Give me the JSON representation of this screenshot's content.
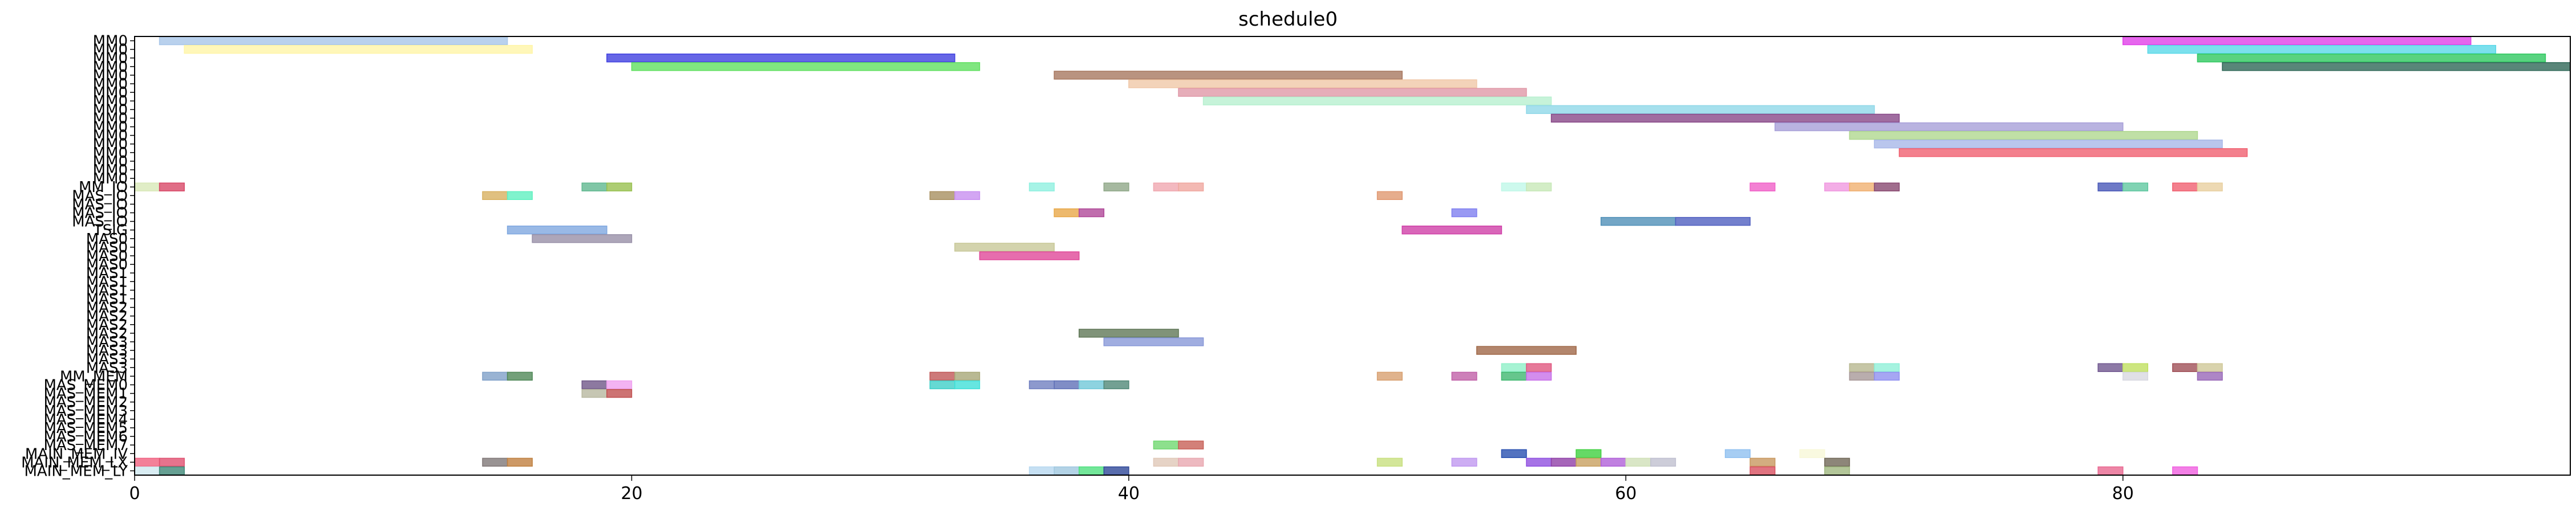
{
  "chart_data": {
    "type": "gantt",
    "title": "schedule0",
    "xlabel": "",
    "ylabel": "",
    "xlim": [
      0,
      98
    ],
    "xticks": [
      0,
      20,
      40,
      60,
      80
    ],
    "grid": false,
    "rows": [
      "MM0",
      "MM0",
      "MM0",
      "MM0",
      "MM0",
      "MM0",
      "MM0",
      "MM0",
      "MM0",
      "MM0",
      "MM0",
      "MM0",
      "MM0",
      "MM0",
      "MM0",
      "MM0",
      "MM0",
      "MM_IO",
      "MAS_IO",
      "MAS_IO",
      "MAS_IO",
      "MAS_IO",
      "TSIG",
      "MAS0",
      "MAS0",
      "MAS0",
      "MAS0",
      "MAS1",
      "MAS1",
      "MAS1",
      "MAS1",
      "MAS2",
      "MAS2",
      "MAS2",
      "MAS2",
      "MAS3",
      "MAS3",
      "MAS3",
      "MAS3",
      "MM_MEM",
      "MAS_MEM0",
      "MAS_MEM1",
      "MAS_MEM2",
      "MAS_MEM3",
      "MAS_MEM4",
      "MAS_MEM5",
      "MAS_MEM6",
      "MAS_MEM7",
      "MAIN_MEM_IV",
      "MAIN_MEM_LX",
      "MAIN_MEM_LY"
    ],
    "ytick_labels": [
      "MM0",
      "MM0",
      "MM0",
      "MM0",
      "MM0",
      "MM0",
      "MM0",
      "MM0",
      "MM0",
      "MM0",
      "MM0",
      "MM0",
      "MM0",
      "MM0",
      "MM0",
      "MM0",
      "MM0",
      "MM_IO",
      "MAS_IO",
      "MAS_IO",
      "MAS_IO",
      "MAS_IO",
      "TSIG",
      "MAS0",
      "MAS0",
      "MAS0",
      "MAS0",
      "MAS1",
      "MAS1",
      "MAS1",
      "MAS1",
      "MAS2",
      "MAS2",
      "MAS2",
      "MAS2",
      "MAS3",
      "MAS3",
      "MAS3",
      "MAS3",
      "MM_MEM",
      "MAS_MEM0",
      "MAS_MEM1",
      "MAS_MEM2",
      "MAS_MEM3",
      "MAS_MEM4",
      "MAS_MEM5",
      "MAS_MEM6",
      "MAS_MEM7",
      "MAIN_MEM_IV",
      "MAIN_MEM_LX",
      "MAIN_MEM_LY"
    ],
    "tasks": [
      {
        "row": 0,
        "start": 1,
        "end": 15,
        "color": "#a8c6e8"
      },
      {
        "row": 0,
        "start": 80,
        "end": 94,
        "color": "#e040e8"
      },
      {
        "row": 1,
        "start": 2,
        "end": 16,
        "color": "#fff5a8"
      },
      {
        "row": 1,
        "start": 81,
        "end": 95,
        "color": "#5ad8e8"
      },
      {
        "row": 2,
        "start": 19,
        "end": 33,
        "color": "#4040e0"
      },
      {
        "row": 2,
        "start": 83,
        "end": 97,
        "color": "#30c860"
      },
      {
        "row": 3,
        "start": 20,
        "end": 34,
        "color": "#60e060"
      },
      {
        "row": 3,
        "start": 84,
        "end": 98,
        "color": "#306858"
      },
      {
        "row": 4,
        "start": 37,
        "end": 51,
        "color": "#a87860"
      },
      {
        "row": 5,
        "start": 40,
        "end": 54,
        "color": "#f0c8a8"
      },
      {
        "row": 6,
        "start": 42,
        "end": 56,
        "color": "#e098a8"
      },
      {
        "row": 7,
        "start": 43,
        "end": 57,
        "color": "#b8f0d0"
      },
      {
        "row": 8,
        "start": 56,
        "end": 70,
        "color": "#90d8e8"
      },
      {
        "row": 9,
        "start": 57,
        "end": 71,
        "color": "#884888"
      },
      {
        "row": 10,
        "start": 66,
        "end": 80,
        "color": "#a8a0d8"
      },
      {
        "row": 11,
        "start": 69,
        "end": 83,
        "color": "#b0d890"
      },
      {
        "row": 12,
        "start": 70,
        "end": 84,
        "color": "#a8b8e8"
      },
      {
        "row": 13,
        "start": 71,
        "end": 85,
        "color": "#f06070"
      },
      {
        "row": 17,
        "start": 0,
        "end": 1,
        "color": "#d8e8b8"
      },
      {
        "row": 17,
        "start": 1,
        "end": 2,
        "color": "#d84868"
      },
      {
        "row": 18,
        "start": 14,
        "end": 15,
        "color": "#d8b060"
      },
      {
        "row": 18,
        "start": 15,
        "end": 16,
        "color": "#60f0c0"
      },
      {
        "row": 17,
        "start": 18,
        "end": 19,
        "color": "#60b890"
      },
      {
        "row": 17,
        "start": 19,
        "end": 20,
        "color": "#98c050"
      },
      {
        "row": 18,
        "start": 32,
        "end": 33,
        "color": "#a89060"
      },
      {
        "row": 18,
        "start": 33,
        "end": 34,
        "color": "#c890f0"
      },
      {
        "row": 17,
        "start": 36,
        "end": 37,
        "color": "#90f0e0"
      },
      {
        "row": 17,
        "start": 39,
        "end": 40,
        "color": "#90a888"
      },
      {
        "row": 17,
        "start": 41,
        "end": 42,
        "color": "#f0a8b0"
      },
      {
        "row": 17,
        "start": 42,
        "end": 43,
        "color": "#f0a8a0"
      },
      {
        "row": 18,
        "start": 50,
        "end": 51,
        "color": "#e09870"
      },
      {
        "row": 17,
        "start": 55,
        "end": 56,
        "color": "#c0f8e8"
      },
      {
        "row": 17,
        "start": 56,
        "end": 57,
        "color": "#c8e8b8"
      },
      {
        "row": 17,
        "start": 65,
        "end": 66,
        "color": "#f060c8"
      },
      {
        "row": 17,
        "start": 68,
        "end": 69,
        "color": "#f098e0"
      },
      {
        "row": 17,
        "start": 69,
        "end": 70,
        "color": "#f0b070"
      },
      {
        "row": 17,
        "start": 70,
        "end": 71,
        "color": "#884870"
      },
      {
        "row": 17,
        "start": 79,
        "end": 80,
        "color": "#4858b8"
      },
      {
        "row": 17,
        "start": 80,
        "end": 81,
        "color": "#60c8a0"
      },
      {
        "row": 17,
        "start": 82,
        "end": 83,
        "color": "#f06070"
      },
      {
        "row": 17,
        "start": 83,
        "end": 84,
        "color": "#e8d0a0"
      },
      {
        "row": 20,
        "start": 37,
        "end": 38,
        "color": "#e8a848"
      },
      {
        "row": 20,
        "start": 38,
        "end": 39,
        "color": "#b04898"
      },
      {
        "row": 20,
        "start": 53,
        "end": 54,
        "color": "#8080f0"
      },
      {
        "row": 21,
        "start": 59,
        "end": 62,
        "color": "#5090b8"
      },
      {
        "row": 21,
        "start": 62,
        "end": 65,
        "color": "#5060c0"
      },
      {
        "row": 22,
        "start": 15,
        "end": 19,
        "color": "#80a8e0"
      },
      {
        "row": 23,
        "start": 16,
        "end": 20,
        "color": "#9890a8"
      },
      {
        "row": 22,
        "start": 51,
        "end": 55,
        "color": "#d040a8"
      },
      {
        "row": 24,
        "start": 33,
        "end": 37,
        "color": "#c8c898"
      },
      {
        "row": 25,
        "start": 34,
        "end": 38,
        "color": "#e04898"
      },
      {
        "row": 34,
        "start": 38,
        "end": 42,
        "color": "#607858"
      },
      {
        "row": 35,
        "start": 39,
        "end": 43,
        "color": "#8898d8"
      },
      {
        "row": 36,
        "start": 54,
        "end": 58,
        "color": "#a06848"
      },
      {
        "row": 38,
        "start": 55,
        "end": 56,
        "color": "#90f0c8"
      },
      {
        "row": 38,
        "start": 56,
        "end": 57,
        "color": "#e05880"
      },
      {
        "row": 38,
        "start": 69,
        "end": 70,
        "color": "#b8b890"
      },
      {
        "row": 38,
        "start": 70,
        "end": 71,
        "color": "#90f0d8"
      },
      {
        "row": 38,
        "start": 79,
        "end": 80,
        "color": "#705890"
      },
      {
        "row": 38,
        "start": 80,
        "end": 81,
        "color": "#c0e060"
      },
      {
        "row": 38,
        "start": 82,
        "end": 83,
        "color": "#a05058"
      },
      {
        "row": 38,
        "start": 83,
        "end": 84,
        "color": "#d0c898"
      },
      {
        "row": 39,
        "start": 14,
        "end": 15,
        "color": "#80a0c8"
      },
      {
        "row": 39,
        "start": 15,
        "end": 16,
        "color": "#508858"
      },
      {
        "row": 39,
        "start": 32,
        "end": 33,
        "color": "#c05858"
      },
      {
        "row": 39,
        "start": 33,
        "end": 34,
        "color": "#a8a878"
      },
      {
        "row": 39,
        "start": 50,
        "end": 51,
        "color": "#d8a070"
      },
      {
        "row": 39,
        "start": 53,
        "end": 54,
        "color": "#c060a8"
      },
      {
        "row": 39,
        "start": 55,
        "end": 56,
        "color": "#40b870"
      },
      {
        "row": 39,
        "start": 56,
        "end": 57,
        "color": "#c870e8"
      },
      {
        "row": 39,
        "start": 69,
        "end": 70,
        "color": "#a89898"
      },
      {
        "row": 39,
        "start": 70,
        "end": 71,
        "color": "#9090f0"
      },
      {
        "row": 39,
        "start": 80,
        "end": 81,
        "color": "#d8d8e0"
      },
      {
        "row": 39,
        "start": 83,
        "end": 84,
        "color": "#9868b8"
      },
      {
        "row": 40,
        "start": 18,
        "end": 19,
        "color": "#705888"
      },
      {
        "row": 40,
        "start": 19,
        "end": 20,
        "color": "#f0a0f0"
      },
      {
        "row": 40,
        "start": 32,
        "end": 33,
        "color": "#40d0c8"
      },
      {
        "row": 40,
        "start": 33,
        "end": 34,
        "color": "#40e0d8"
      },
      {
        "row": 40,
        "start": 36,
        "end": 37,
        "color": "#7080c0"
      },
      {
        "row": 40,
        "start": 37,
        "end": 38,
        "color": "#6070b8"
      },
      {
        "row": 40,
        "start": 38,
        "end": 39,
        "color": "#70c8d8"
      },
      {
        "row": 40,
        "start": 39,
        "end": 40,
        "color": "#508878"
      },
      {
        "row": 41,
        "start": 18,
        "end": 19,
        "color": "#b8b8a0"
      },
      {
        "row": 41,
        "start": 19,
        "end": 20,
        "color": "#c05050"
      },
      {
        "row": 47,
        "start": 41,
        "end": 42,
        "color": "#70d870"
      },
      {
        "row": 47,
        "start": 42,
        "end": 43,
        "color": "#c86058"
      },
      {
        "row": 48,
        "start": 55,
        "end": 56,
        "color": "#2850b0"
      },
      {
        "row": 48,
        "start": 58,
        "end": 59,
        "color": "#40d040"
      },
      {
        "row": 48,
        "start": 64,
        "end": 65,
        "color": "#90c0f0"
      },
      {
        "row": 48,
        "start": 67,
        "end": 68,
        "color": "#f8f8d8"
      },
      {
        "row": 49,
        "start": 0,
        "end": 1,
        "color": "#f06080"
      },
      {
        "row": 49,
        "start": 1,
        "end": 2,
        "color": "#e05070"
      },
      {
        "row": 49,
        "start": 14,
        "end": 15,
        "color": "#807878"
      },
      {
        "row": 49,
        "start": 15,
        "end": 16,
        "color": "#c08040"
      },
      {
        "row": 49,
        "start": 41,
        "end": 42,
        "color": "#e0c8b8"
      },
      {
        "row": 49,
        "start": 42,
        "end": 43,
        "color": "#e8a8b0"
      },
      {
        "row": 49,
        "start": 50,
        "end": 51,
        "color": "#c8e080"
      },
      {
        "row": 49,
        "start": 53,
        "end": 54,
        "color": "#c098f0"
      },
      {
        "row": 49,
        "start": 56,
        "end": 57,
        "color": "#9050e0"
      },
      {
        "row": 49,
        "start": 57,
        "end": 58,
        "color": "#9040a8"
      },
      {
        "row": 49,
        "start": 58,
        "end": 59,
        "color": "#c8a060"
      },
      {
        "row": 49,
        "start": 59,
        "end": 60,
        "color": "#b060d8"
      },
      {
        "row": 49,
        "start": 60,
        "end": 61,
        "color": "#d0e0b8"
      },
      {
        "row": 49,
        "start": 61,
        "end": 62,
        "color": "#c0c0d0"
      },
      {
        "row": 49,
        "start": 65,
        "end": 66,
        "color": "#c89860"
      },
      {
        "row": 49,
        "start": 68,
        "end": 69,
        "color": "#706858"
      },
      {
        "row": 50,
        "start": 0,
        "end": 1,
        "color": "#d0e8f0"
      },
      {
        "row": 50,
        "start": 1,
        "end": 2,
        "color": "#408878"
      },
      {
        "row": 50,
        "start": 36,
        "end": 37,
        "color": "#b8d8f0"
      },
      {
        "row": 50,
        "start": 37,
        "end": 38,
        "color": "#a0c8e0"
      },
      {
        "row": 50,
        "start": 38,
        "end": 39,
        "color": "#50e080"
      },
      {
        "row": 50,
        "start": 39,
        "end": 40,
        "color": "#304898"
      },
      {
        "row": 50,
        "start": 65,
        "end": 66,
        "color": "#d85060"
      },
      {
        "row": 50,
        "start": 68,
        "end": 69,
        "color": "#a0b880"
      },
      {
        "row": 50,
        "start": 79,
        "end": 80,
        "color": "#e86890"
      },
      {
        "row": 50,
        "start": 82,
        "end": 83,
        "color": "#f060e0"
      }
    ]
  }
}
